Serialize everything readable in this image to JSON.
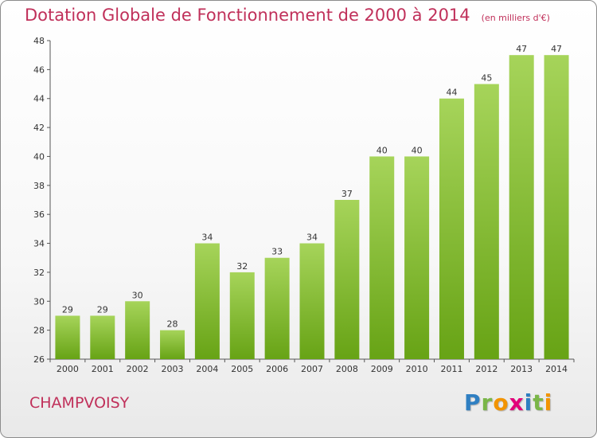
{
  "header": {
    "title": "Dotation Globale de Fonctionnement de 2000 à 2014",
    "unit": "(en milliers d'€)"
  },
  "footer": {
    "place": "CHAMPVOISY",
    "brand": [
      {
        "ch": "P",
        "color": "#2f7fc2"
      },
      {
        "ch": "r",
        "color": "#7ab648"
      },
      {
        "ch": "o",
        "color": "#f29400"
      },
      {
        "ch": "x",
        "color": "#e2007a"
      },
      {
        "ch": "i",
        "color": "#2f7fc2"
      },
      {
        "ch": "t",
        "color": "#7ab648"
      },
      {
        "ch": "i",
        "color": "#f29400"
      }
    ]
  },
  "colors": {
    "bar_light": "#a6d45a",
    "bar_dark": "#67a315",
    "title": "#c0305a"
  },
  "chart_data": {
    "type": "bar",
    "title": "Dotation Globale de Fonctionnement de 2000 à 2014",
    "subtitle": "(en milliers d'€)",
    "categories": [
      "2000",
      "2001",
      "2002",
      "2003",
      "2004",
      "2005",
      "2006",
      "2007",
      "2008",
      "2009",
      "2010",
      "2011",
      "2012",
      "2013",
      "2014"
    ],
    "values": [
      29,
      29,
      30,
      28,
      34,
      32,
      33,
      34,
      37,
      40,
      40,
      44,
      45,
      47,
      47
    ],
    "ylim": [
      26,
      48
    ],
    "yticks": [
      26,
      28,
      30,
      32,
      34,
      36,
      38,
      40,
      42,
      44,
      46,
      48
    ],
    "grid": false,
    "legend": "none"
  }
}
